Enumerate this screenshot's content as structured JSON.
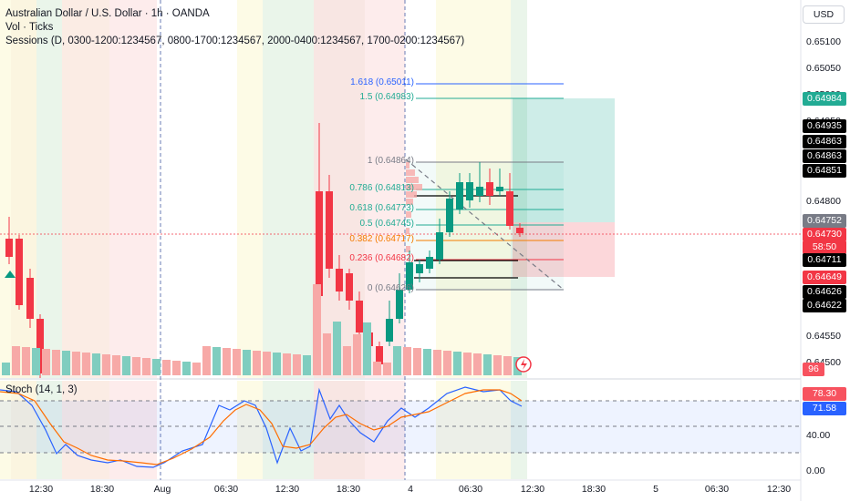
{
  "header": {
    "title": "Australian Dollar / U.S. Dollar · 1h · OANDA",
    "volume": "Vol · Ticks",
    "sessions": "Sessions (D, 0300-1200:1234567, 0800-1700:1234567, 2000-0400:1234567, 1700-0200:1234567)"
  },
  "currency_button": "USD",
  "price_axis": [
    "0.65100",
    "0.65050",
    "0.65000",
    "0.64950",
    "0.64800",
    "0.64550",
    "0.64500"
  ],
  "price_badges": [
    {
      "text": "0.64984",
      "bg": "#22ab94",
      "fg": "#ffffff"
    },
    {
      "text": "0.64935",
      "bg": "#000000",
      "fg": "#ffffff"
    },
    {
      "text": "0.64863",
      "bg": "#000000",
      "fg": "#ffffff"
    },
    {
      "text": "0.64863",
      "bg": "#000000",
      "fg": "#ffffff"
    },
    {
      "text": "0.64851",
      "bg": "#000000",
      "fg": "#ffffff"
    },
    {
      "text": "0.64752",
      "bg": "#787b86",
      "fg": "#ffffff"
    },
    {
      "text": "0.64730",
      "bg": "#f23645",
      "fg": "#ffffff"
    },
    {
      "text": "58:50",
      "bg": "#f23645",
      "fg": "#ffffff"
    },
    {
      "text": "0.64711",
      "bg": "#000000",
      "fg": "#ffffff"
    },
    {
      "text": "0.64649",
      "bg": "#f23645",
      "fg": "#ffffff"
    },
    {
      "text": "0.64626",
      "bg": "#000000",
      "fg": "#ffffff"
    },
    {
      "text": "0.64622",
      "bg": "#000000",
      "fg": "#ffffff"
    }
  ],
  "volume_badge": {
    "text": "96",
    "bg": "#f7525f"
  },
  "fib_levels": [
    {
      "label": "1.618 (0.65011)",
      "color": "#2962ff"
    },
    {
      "label": "1.5 (0.64983)",
      "color": "#22ab94"
    },
    {
      "label": "1 (0.64864)",
      "color": "#787b86"
    },
    {
      "label": "0.786 (0.64813)",
      "color": "#22ab94"
    },
    {
      "label": "0.618 (0.64773)",
      "color": "#22ab94"
    },
    {
      "label": "0.5 (0.64745)",
      "color": "#22ab94"
    },
    {
      "label": "0.382 (0.64717)",
      "color": "#f57c00"
    },
    {
      "label": "0.236 (0.64682)",
      "color": "#f23645"
    },
    {
      "label": "0 (0.64626)",
      "color": "#787b86"
    }
  ],
  "stoch": {
    "title": "Stoch (14, 1, 3)",
    "k_value": "78.30",
    "d_value": "71.58",
    "k_color": "#f7525f",
    "d_color": "#2962ff",
    "axis": [
      "40.00",
      "0.00"
    ]
  },
  "time_axis": [
    "12:30",
    "18:30",
    "Aug",
    "06:30",
    "12:30",
    "18:30",
    "4",
    "06:30",
    "12:30",
    "18:30",
    "5",
    "06:30",
    "12:30"
  ],
  "colors": {
    "up": "#089981",
    "down": "#f23645",
    "vol_up": "#7fcdbf",
    "vol_down": "#f7a9a7"
  }
}
